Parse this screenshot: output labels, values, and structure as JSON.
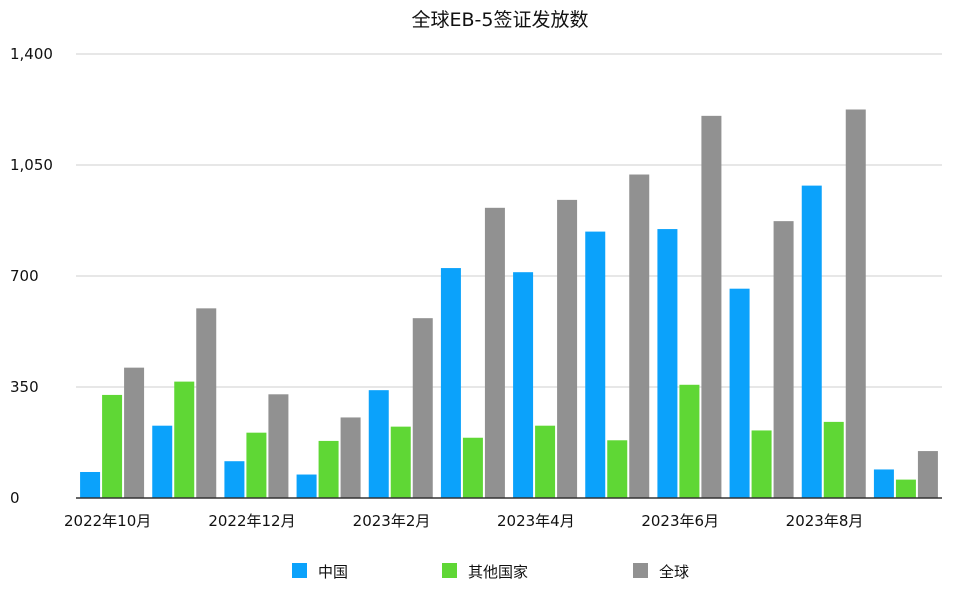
{
  "chart_data": {
    "type": "bar",
    "title": "全球EB-5签证发放数",
    "xlabel": "",
    "ylabel": "",
    "ylim": [
      0,
      1400
    ],
    "yticks": [
      0,
      350,
      700,
      1050,
      1400
    ],
    "ytick_labels": [
      "0",
      "350",
      "700",
      "1,050",
      "1,400"
    ],
    "categories": [
      "2022年10月",
      "2022年11月",
      "2022年12月",
      "2023年1月",
      "2023年2月",
      "2023年3月",
      "2023年4月",
      "2023年5月",
      "2023年6月",
      "2023年7月",
      "2023年8月",
      "2023年9月"
    ],
    "xtick_labels": [
      "2022年10月",
      "",
      "2022年12月",
      "",
      "2023年2月",
      "",
      "2023年4月",
      "",
      "2023年6月",
      "",
      "2023年8月",
      ""
    ],
    "series": [
      {
        "name": "中国",
        "color": "#0ba2fb",
        "values": [
          82,
          228,
          116,
          74,
          340,
          725,
          712,
          840,
          848,
          660,
          985,
          90
        ]
      },
      {
        "name": "其他国家",
        "color": "#5fd735",
        "values": [
          325,
          367,
          206,
          180,
          225,
          190,
          228,
          182,
          357,
          213,
          240,
          58
        ]
      },
      {
        "name": "全球",
        "color": "#919191",
        "values": [
          411,
          598,
          327,
          254,
          567,
          915,
          940,
          1020,
          1205,
          873,
          1225,
          148
        ]
      }
    ],
    "grid": true,
    "legend_position": "bottom"
  }
}
